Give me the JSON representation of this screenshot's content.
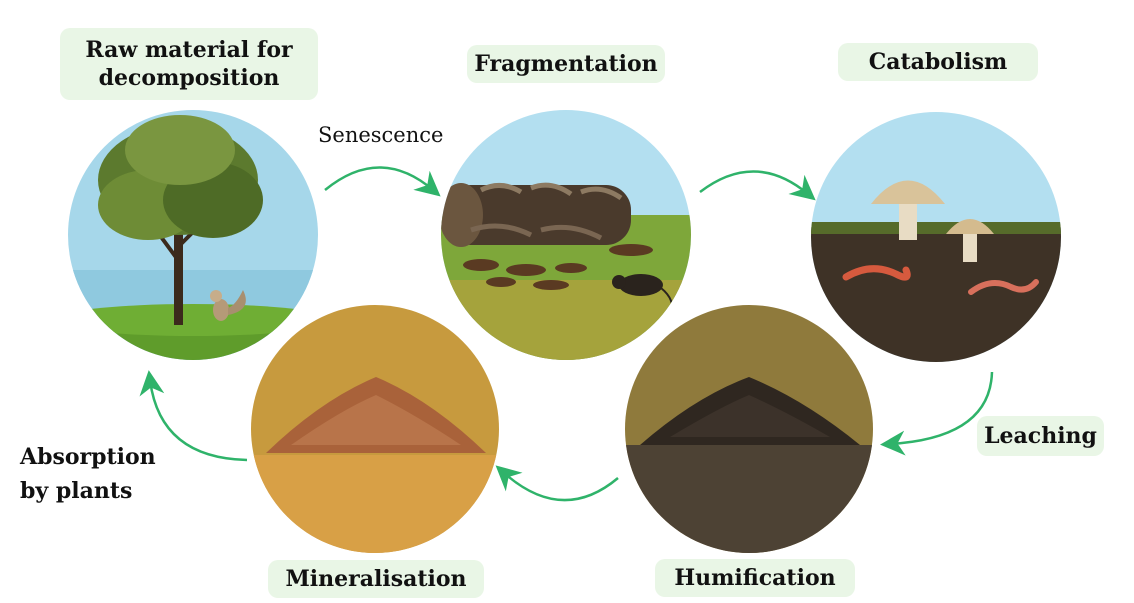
{
  "stages": {
    "raw_material": "Raw material for\ndecomposition",
    "fragmentation": "Fragmentation",
    "catabolism": "Catabolism",
    "leaching": "Leaching",
    "humification": "Humification",
    "mineralisation": "Mineralisation"
  },
  "transitions": {
    "senescence": "Senescence",
    "absorption": "Absorption\nby plants"
  },
  "colors": {
    "arrow": "#2fb36a",
    "label_bg": "#e9f6e6",
    "sky": "#9fd3ea",
    "grass": "#5f9c2b"
  },
  "icons": [
    "tree-icon",
    "squirrel-icon",
    "log-with-fungi-icon",
    "rat-icon",
    "mushroom-icon",
    "earthworm-icon",
    "soil-pile-icon"
  ]
}
